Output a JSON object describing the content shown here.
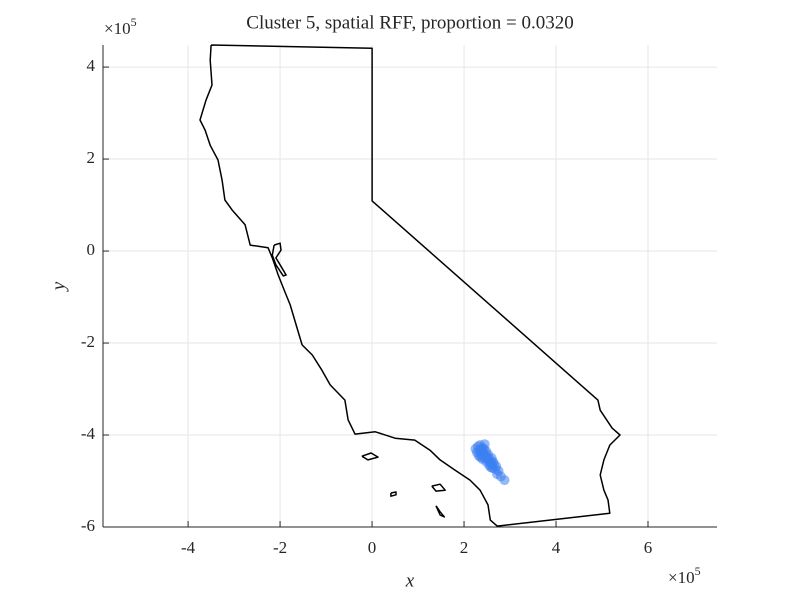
{
  "chart_data": {
    "type": "scatter",
    "title": "Cluster 5, spatial RFF, proportion = 0.0320",
    "xlabel": "x",
    "ylabel": "y",
    "x_multiplier": {
      "base": "×10",
      "exponent": "5"
    },
    "y_multiplier": {
      "base": "×10",
      "exponent": "5"
    },
    "xlim": [
      -5.85,
      7.5
    ],
    "ylim": [
      -6,
      4.48
    ],
    "xticks": [
      -4,
      -2,
      0,
      2,
      4,
      6
    ],
    "yticks": [
      -6,
      -4,
      -2,
      0,
      2,
      4
    ],
    "grid": true,
    "series": [
      {
        "kind": "line",
        "color": "#000000",
        "x": [
          -3.5,
          0,
          0,
          4.91,
          4.96,
          5.22,
          5.39,
          5.17,
          5.04,
          4.96,
          5.04,
          5.13,
          5.17,
          2.72,
          2.57,
          2.52,
          2.35,
          2.13,
          1.8,
          1.48,
          1.26,
          0.93,
          0.5,
          0.07,
          -0.37,
          -0.52,
          -0.59,
          -0.91,
          -1.09,
          -1.3,
          -1.52,
          -1.65,
          -1.78,
          -1.91,
          -2.04,
          -2.17,
          -2.26,
          -2.65,
          -2.76,
          -3.04,
          -3.2,
          -3.26,
          -3.35,
          -3.52,
          -3.63,
          -3.74,
          -3.61,
          -3.48,
          -3.52,
          -3.5,
          null,
          -0.22,
          -0.02,
          0.13,
          -0.09,
          -0.22,
          null,
          1.39,
          1.48,
          1.57,
          1.48,
          1.39,
          null,
          1.3,
          1.48,
          1.59,
          1.39,
          1.3,
          null,
          0.41,
          0.52,
          0.52,
          0.41,
          0.41,
          null,
          -2.13,
          -2.0,
          -1.98,
          -2.09,
          -2.0,
          -1.87,
          -1.93,
          -2.09,
          -2.17,
          -2.13
        ],
        "y": [
          4.48,
          4.41,
          1.09,
          -3.24,
          -3.46,
          -3.85,
          -4.0,
          -4.22,
          -4.54,
          -4.87,
          -5.2,
          -5.41,
          -5.7,
          -5.98,
          -5.85,
          -5.52,
          -5.2,
          -4.98,
          -4.76,
          -4.54,
          -4.33,
          -4.11,
          -4.07,
          -3.93,
          -3.98,
          -3.67,
          -3.24,
          -2.91,
          -2.59,
          -2.26,
          -2.04,
          -1.61,
          -1.17,
          -0.85,
          -0.52,
          -0.15,
          0.07,
          0.13,
          0.57,
          0.89,
          1.11,
          1.54,
          1.98,
          2.3,
          2.63,
          2.85,
          3.28,
          3.61,
          4.15,
          4.48,
          null,
          -4.46,
          -4.39,
          -4.48,
          -4.54,
          -4.46,
          null,
          -5.54,
          -5.67,
          -5.78,
          -5.74,
          -5.54,
          null,
          -5.11,
          -5.07,
          -5.2,
          -5.22,
          -5.11,
          null,
          -5.26,
          -5.24,
          -5.3,
          -5.33,
          -5.26,
          null,
          0.13,
          0.17,
          0.02,
          -0.15,
          -0.3,
          -0.52,
          -0.54,
          -0.3,
          -0.09,
          0.13
        ]
      },
      {
        "kind": "scatter",
        "color": "#3c7ff0",
        "x": [
          2.25,
          2.3,
          2.35,
          2.4,
          2.28,
          2.33,
          2.38,
          2.43,
          2.48,
          2.32,
          2.37,
          2.42,
          2.47,
          2.52,
          2.4,
          2.45,
          2.5,
          2.55,
          2.6,
          2.48,
          2.53,
          2.58,
          2.63,
          2.55,
          2.6,
          2.65,
          2.7,
          2.62,
          2.68,
          2.75,
          2.72,
          2.8,
          2.88,
          2.45,
          2.36,
          2.58
        ],
        "y": [
          -4.3,
          -4.25,
          -4.22,
          -4.28,
          -4.38,
          -4.35,
          -4.32,
          -4.3,
          -4.35,
          -4.45,
          -4.42,
          -4.4,
          -4.45,
          -4.42,
          -4.52,
          -4.5,
          -4.48,
          -4.52,
          -4.5,
          -4.58,
          -4.56,
          -4.6,
          -4.58,
          -4.66,
          -4.64,
          -4.62,
          -4.68,
          -4.72,
          -4.74,
          -4.78,
          -4.85,
          -4.9,
          -4.98,
          -4.2,
          -4.48,
          -4.7
        ]
      }
    ]
  }
}
